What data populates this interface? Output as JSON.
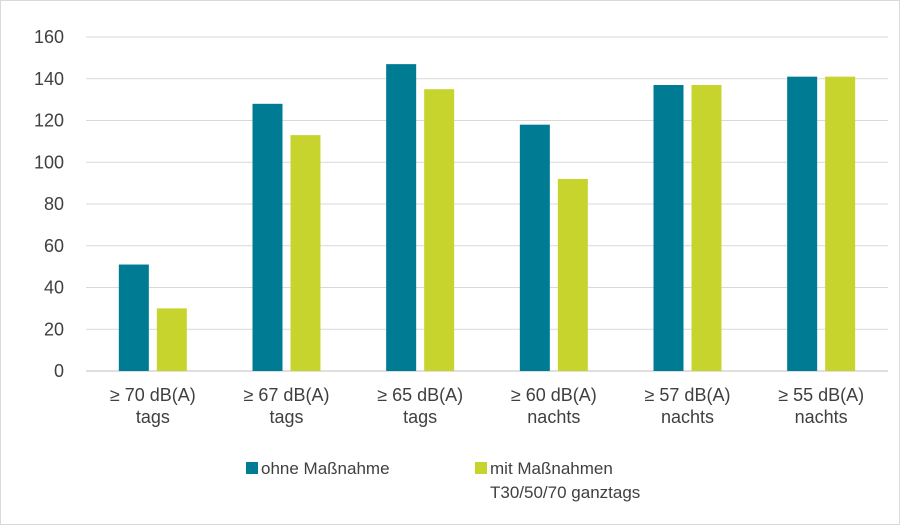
{
  "chart_data": {
    "type": "bar",
    "title": "",
    "xlabel": "",
    "ylabel": "",
    "ylim": [
      0,
      160
    ],
    "yticks": [
      0,
      20,
      40,
      60,
      80,
      100,
      120,
      140,
      160
    ],
    "grid": true,
    "legend_position": "bottom",
    "categories": [
      [
        "≥ 70 dB(A)",
        "tags"
      ],
      [
        "≥ 67 dB(A)",
        "tags"
      ],
      [
        "≥ 65 dB(A)",
        "tags"
      ],
      [
        "≥ 60 dB(A)",
        "nachts"
      ],
      [
        "≥ 57 dB(A)",
        "nachts"
      ],
      [
        "≥ 55 dB(A)",
        "nachts"
      ]
    ],
    "series": [
      {
        "name": "ohne Maßnahme",
        "color": "#007b94",
        "values": [
          51,
          128,
          147,
          118,
          137,
          141
        ]
      },
      {
        "name": [
          "mit Maßnahmen",
          "T30/50/70 ganztags"
        ],
        "color": "#c8d42e",
        "values": [
          30,
          113,
          135,
          92,
          137,
          141
        ]
      }
    ]
  }
}
